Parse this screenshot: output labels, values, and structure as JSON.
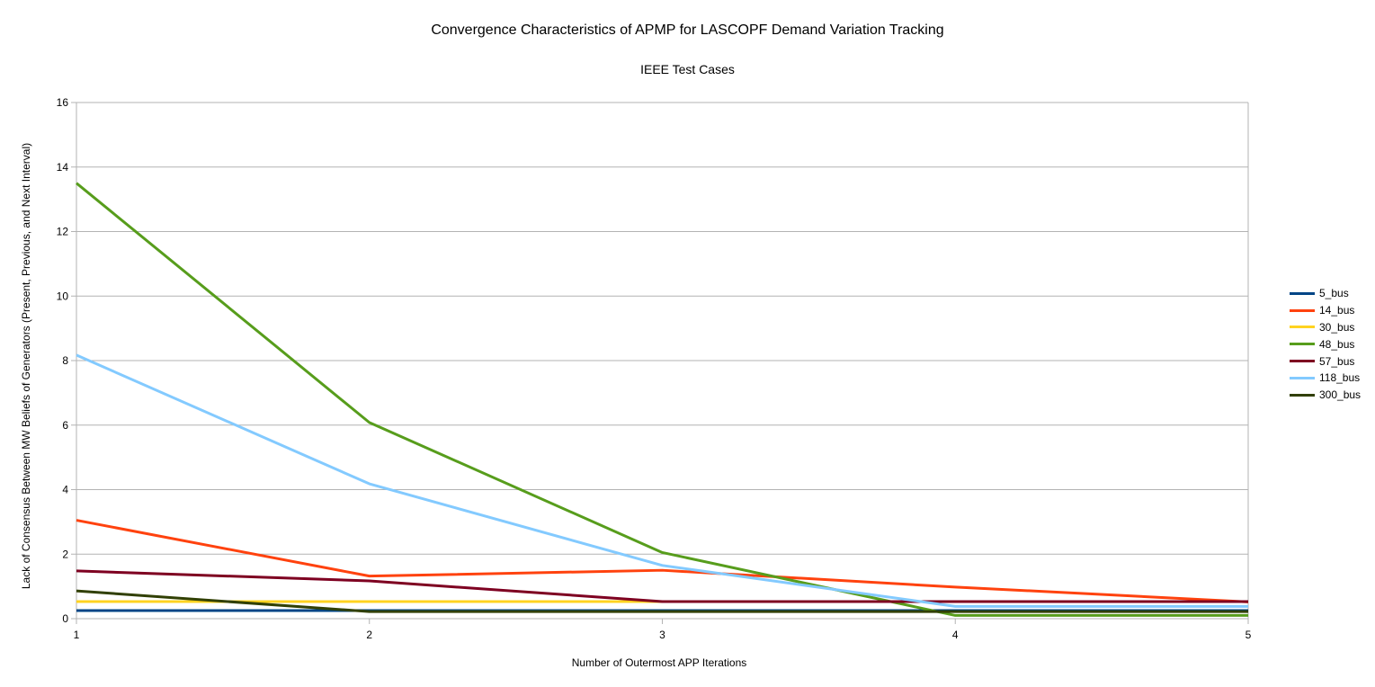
{
  "chart_data": {
    "type": "line",
    "title": "Convergence Characteristics of APMP for LASCOPF Demand Variation Tracking",
    "subtitle": "IEEE Test Cases",
    "xlabel": "Number of Outermost APP Iterations",
    "ylabel": "Lack of Consensus Between MW Beliefs of Generators (Present, Previous, and Next Interval)",
    "x": [
      1,
      2,
      3,
      4,
      5
    ],
    "xlim": [
      1,
      5
    ],
    "ylim": [
      0,
      16
    ],
    "yticks": [
      0,
      2,
      4,
      6,
      8,
      10,
      12,
      14,
      16
    ],
    "grid": "horizontal",
    "legend_position": "right",
    "series": [
      {
        "name": "5_bus",
        "color": "#004586",
        "values": [
          0.25,
          0.25,
          0.25,
          0.25,
          0.25
        ]
      },
      {
        "name": "14_bus",
        "color": "#ff420e",
        "values": [
          3.05,
          1.32,
          1.5,
          0.98,
          0.52
        ]
      },
      {
        "name": "30_bus",
        "color": "#ffd320",
        "values": [
          0.53,
          0.53,
          0.53,
          0.53,
          0.53
        ]
      },
      {
        "name": "48_bus",
        "color": "#579d1c",
        "values": [
          13.5,
          6.08,
          2.05,
          0.1,
          0.1
        ]
      },
      {
        "name": "57_bus",
        "color": "#7e0021",
        "values": [
          1.48,
          1.17,
          0.53,
          0.53,
          0.53
        ]
      },
      {
        "name": "118_bus",
        "color": "#83caff",
        "values": [
          8.17,
          4.18,
          1.65,
          0.38,
          0.38
        ]
      },
      {
        "name": "300_bus",
        "color": "#314004",
        "values": [
          0.86,
          0.22,
          0.22,
          0.22,
          0.22
        ]
      }
    ]
  }
}
